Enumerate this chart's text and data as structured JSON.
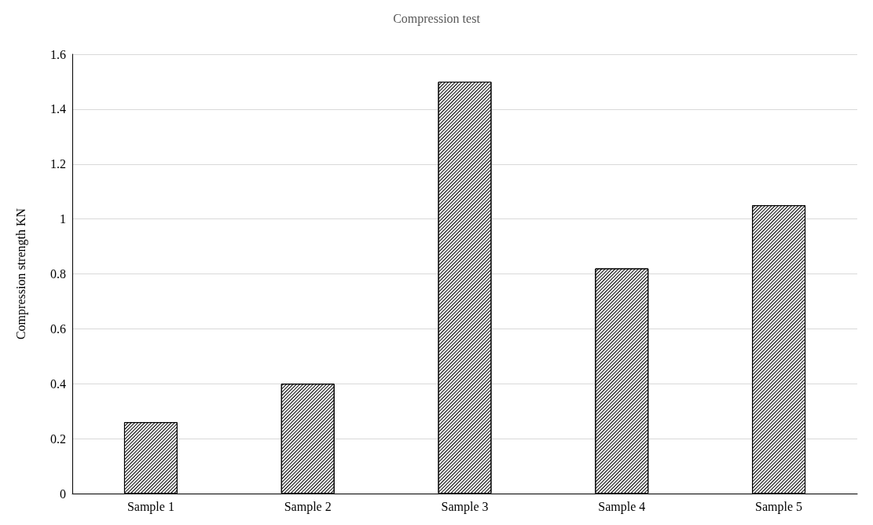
{
  "chart_data": {
    "type": "bar",
    "title": "Compression test",
    "ylabel": "Compression strength KN",
    "categories": [
      "Sample 1",
      "Sample 2",
      "Sample 3",
      "Sample 4",
      "Sample 5"
    ],
    "values": [
      0.26,
      0.4,
      1.5,
      0.82,
      1.05
    ],
    "color": "#000000",
    "ylim": [
      0,
      1.6
    ],
    "yticks": [
      0,
      0.2,
      0.4,
      0.6,
      0.8,
      1,
      1.2,
      1.4,
      1.6
    ],
    "grid": "y"
  }
}
